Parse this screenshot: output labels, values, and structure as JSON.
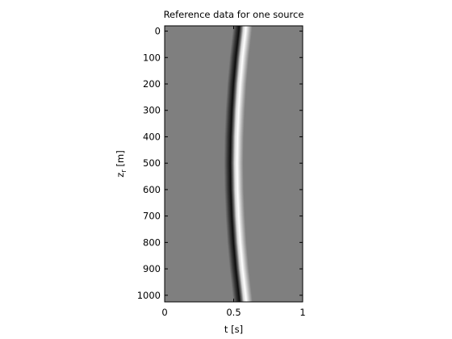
{
  "chart_data": {
    "type": "heatmap",
    "title": "Reference data for one source",
    "xlabel": "t [s]",
    "ylabel_main": "z",
    "ylabel_sub": "r",
    "ylabel_units": " [m]",
    "xlim": [
      0,
      1
    ],
    "ylim": [
      1025,
      -20
    ],
    "y_axis_reversed": true,
    "colormap": "gray",
    "background_value": "mid-gray",
    "xticks": [
      0,
      0.5,
      1
    ],
    "xtick_labels": [
      "0",
      "0.5",
      "1"
    ],
    "yticks": [
      0,
      100,
      200,
      300,
      400,
      500,
      600,
      700,
      800,
      900,
      1000
    ],
    "ytick_labels": [
      "0",
      "100",
      "200",
      "300",
      "400",
      "500",
      "600",
      "700",
      "800",
      "900",
      "1000"
    ],
    "arrival": {
      "description": "hyperbolic direct-arrival wavelet: dark lobe then bright lobe",
      "z": [
        -20,
        0,
        100,
        200,
        300,
        400,
        500,
        600,
        700,
        800,
        900,
        1000,
        1025
      ],
      "t": [
        0.565,
        0.562,
        0.54,
        0.523,
        0.511,
        0.503,
        0.5,
        0.503,
        0.511,
        0.523,
        0.54,
        0.562,
        0.567
      ]
    },
    "colors": {
      "background": "#7f7f7f",
      "peak": "#ffffff",
      "trough": "#0d0d0d"
    }
  }
}
